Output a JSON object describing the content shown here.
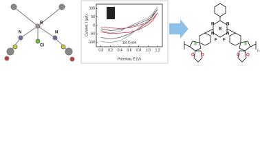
{
  "chart_data": {
    "type": "line",
    "x_label": "Potential, E (V)",
    "y_label": "Current, I (μA)",
    "annotation": "1st Cycle",
    "xlim": [
      -0.1,
      1.3
    ],
    "xticks": [
      {
        "value": 0,
        "label": "0.0"
      },
      0.2,
      0.4,
      0.6,
      0.8,
      {
        "value": 1,
        "label": "1.0"
      },
      1.2
    ],
    "ylim": [
      -125,
      125
    ],
    "yticks": [
      100,
      50,
      0,
      -50,
      -100
    ],
    "series": [
      {
        "color": "#e0304a",
        "x": [
          0,
          0.2,
          0.4,
          0.6,
          0.8,
          1.0,
          1.1,
          1.2,
          1.1,
          1.0,
          0.8,
          0.6,
          0.4,
          0.2,
          0
        ],
        "values": [
          -10,
          -14,
          -18,
          -14,
          0,
          20,
          40,
          75,
          30,
          5,
          -25,
          -40,
          -45,
          -48,
          -38
        ]
      },
      {
        "color": "#555555",
        "x": [
          0,
          0.2,
          0.4,
          0.6,
          0.8,
          1.0,
          1.1,
          1.2,
          1.1,
          1.0,
          0.8,
          0.6,
          0.4,
          0.2,
          0
        ],
        "values": [
          -20,
          -30,
          -25,
          -10,
          10,
          35,
          60,
          95,
          55,
          20,
          -20,
          -50,
          -70,
          -80,
          -70
        ]
      },
      {
        "color": "#999999",
        "x": [
          0,
          0.2,
          0.4,
          0.6,
          0.8,
          1.0,
          1.1,
          1.2,
          1.1,
          1.0,
          0.8,
          0.6,
          0.4,
          0.2,
          0
        ],
        "values": [
          -30,
          -45,
          -35,
          -5,
          20,
          45,
          70,
          110,
          65,
          30,
          -15,
          -60,
          -90,
          -100,
          -95
        ]
      }
    ]
  },
  "structure": {
    "labels": [
      "N",
      "N",
      "B",
      "F",
      "F",
      "N",
      "N",
      "S",
      "S",
      "O",
      "O",
      "O",
      "O",
      "n"
    ]
  },
  "crystal": {
    "labels": [
      "N",
      "N",
      "B",
      "Cl"
    ]
  }
}
